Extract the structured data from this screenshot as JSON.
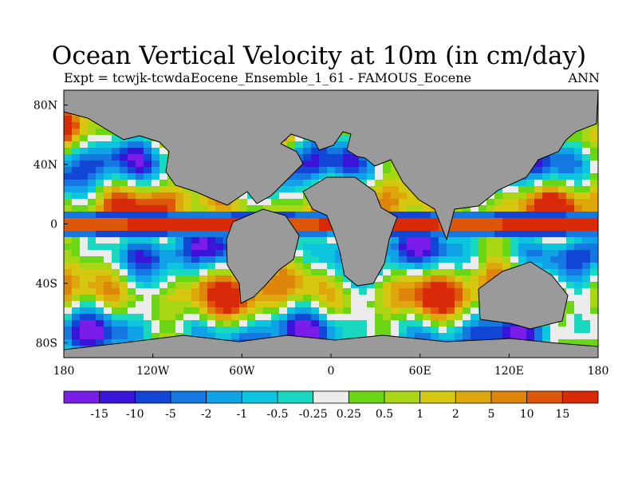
{
  "title": "Ocean Vertical Velocity at 10m (in cm/day)",
  "subtitle_left": "Expt = tcwjk-tcwda",
  "subtitle_center": "Eocene_Ensemble_1_61 - FAMOUS_Eocene",
  "subtitle_right": "ANN",
  "map": {
    "lon_range": [
      -180,
      180
    ],
    "lat_range": [
      -90,
      90
    ],
    "land_color": "#9a9a9a",
    "coastline_color": "#000000",
    "x_ticks": [
      "180",
      "120W",
      "60W",
      "0",
      "60E",
      "120E",
      "180"
    ],
    "y_ticks": [
      "80N",
      "40N",
      "0",
      "40S",
      "80S"
    ]
  },
  "colorbar": {
    "colors": [
      "#7a1de8",
      "#3a14d8",
      "#1246d6",
      "#1478e0",
      "#10a2e6",
      "#0cc4de",
      "#18d8c0",
      "#ececec",
      "#6ad614",
      "#a8d614",
      "#d6c810",
      "#dea80c",
      "#de860a",
      "#de560a",
      "#d82a08"
    ],
    "labels": [
      "-15",
      "-10",
      "-5",
      "-2",
      "-1",
      "-0.5",
      "-0.25",
      "0.25",
      "0.5",
      "1",
      "2",
      "5",
      "10",
      "15"
    ]
  }
}
